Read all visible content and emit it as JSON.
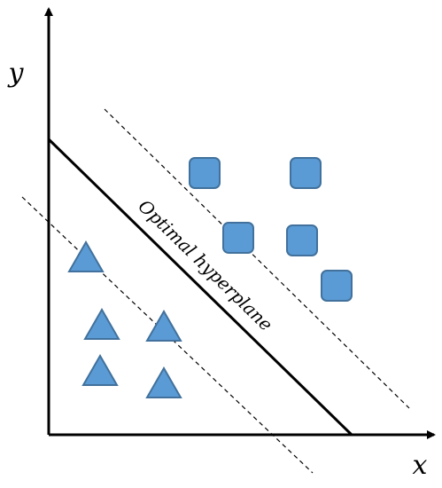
{
  "axes": {
    "y_label": "y",
    "x_label": "x"
  },
  "hyperplane": {
    "label": "Optimal hyperplane"
  }
}
